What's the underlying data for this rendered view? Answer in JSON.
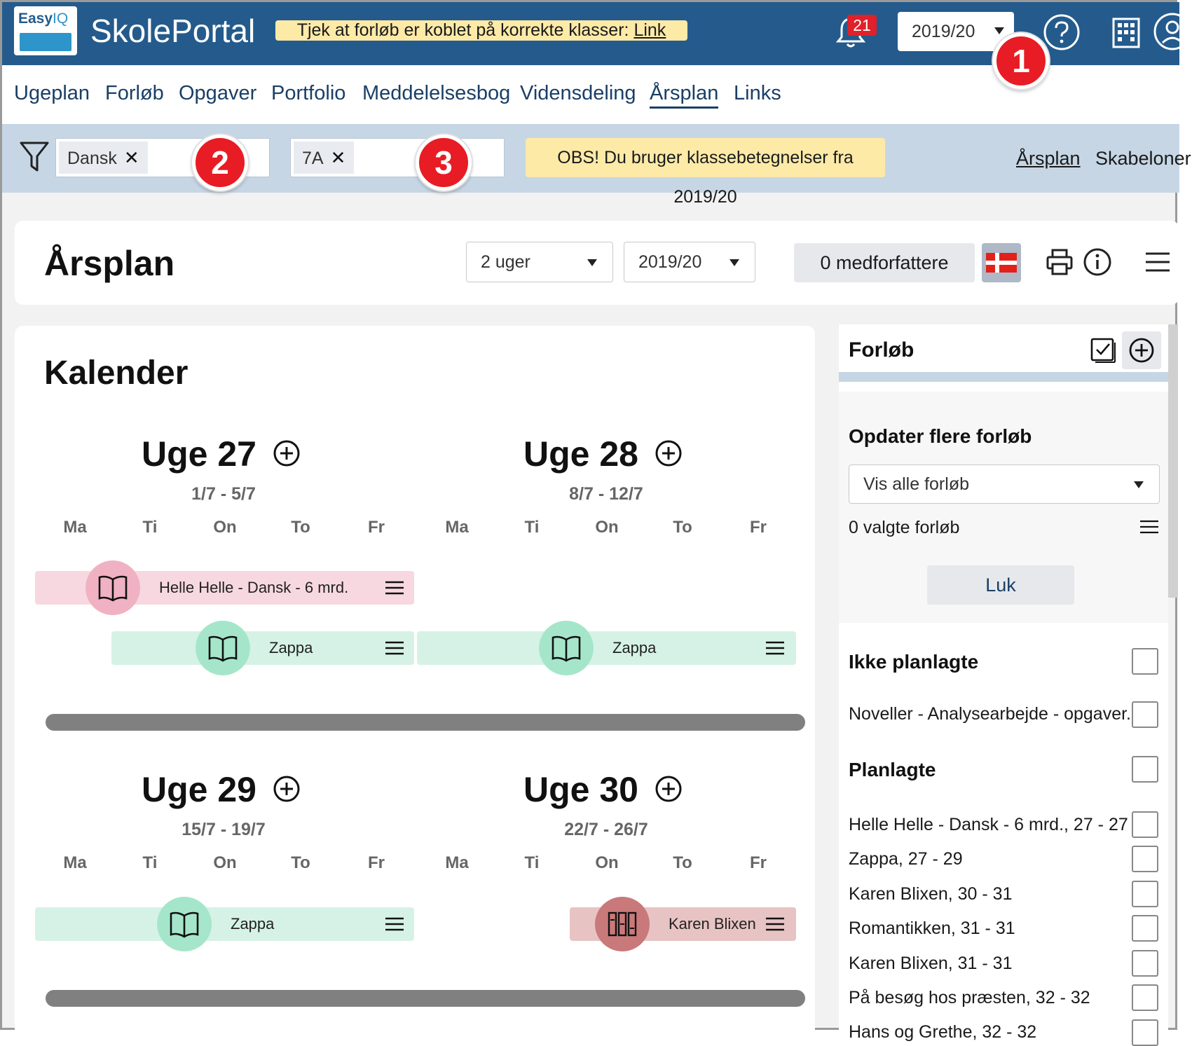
{
  "header": {
    "logo_easy": "Easy",
    "logo_iq": "IQ",
    "brand": "SkolePortal",
    "notice_text": "Tjek at forløb er koblet på korrekte klasser:",
    "notice_link": "Link",
    "notification_count": "21",
    "year": "2019/20"
  },
  "nav": {
    "items": [
      "Ugeplan",
      "Forløb",
      "Opgaver",
      "Portfolio",
      "Meddelelsesbog",
      "Vidensdeling",
      "Årsplan",
      "Links"
    ],
    "active": "Årsplan"
  },
  "filters": {
    "subject_chip": "Dansk",
    "class_chip": "7A",
    "obs_text": "OBS! Du bruger klassebetegnelser fra 2019/20",
    "link_arsplan": "Årsplan",
    "link_skabeloner": "Skabeloner"
  },
  "badges": [
    "1",
    "2",
    "3"
  ],
  "title_bar": {
    "title": "Årsplan",
    "period": "2 uger",
    "year": "2019/20",
    "coauthors": "0 medforfattere"
  },
  "calendar": {
    "title": "Kalender",
    "day_labels": [
      "Ma",
      "Ti",
      "On",
      "To",
      "Fr"
    ],
    "weeks": [
      {
        "title": "Uge 27",
        "range": "1/7 - 5/7"
      },
      {
        "title": "Uge 28",
        "range": "8/7 - 12/7"
      },
      {
        "title": "Uge 29",
        "range": "15/7 - 19/7"
      },
      {
        "title": "Uge 30",
        "range": "22/7 - 26/7"
      }
    ],
    "bars": [
      {
        "label": "Helle Helle - Dansk - 6 mrd.",
        "color": "#f7d8e0"
      },
      {
        "label": "Zappa",
        "color": "#d6f2e6"
      },
      {
        "label": "Zappa",
        "color": "#d6f2e6"
      },
      {
        "label": "Zappa",
        "color": "#d6f2e6"
      },
      {
        "label": "Karen Blixen",
        "color": "#e8c3c3"
      }
    ]
  },
  "side": {
    "title": "Forløb",
    "update_title": "Opdater flere forløb",
    "filter_select": "Vis alle forløb",
    "selected_count": "0 valgte forløb",
    "close_button": "Luk",
    "unplanned_title": "Ikke planlagte",
    "unplanned_items": [
      "Noveller - Analysearbejde - opgaver..."
    ],
    "planned_title": "Planlagte",
    "planned_items": [
      "Helle Helle - Dansk - 6 mrd., 27 - 27",
      "Zappa, 27 - 29",
      "Karen Blixen, 30 - 31",
      "Romantikken, 31 - 31",
      "Karen Blixen, 31 - 31",
      "På besøg hos præsten, 32 - 32",
      "Hans og Grethe, 32 - 32"
    ]
  }
}
